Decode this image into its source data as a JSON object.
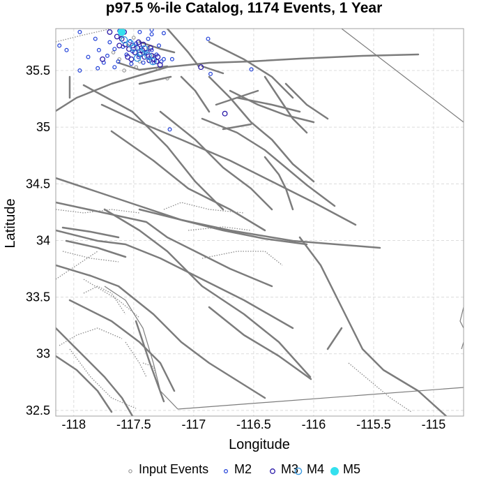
{
  "chart_data": {
    "type": "scatter",
    "title": "p97.5 %-ile Catalog, 1174 Events, 1 Year",
    "xlabel": "Longitude",
    "ylabel": "Latitude",
    "xlim": [
      -118.15,
      -114.75
    ],
    "ylim": [
      32.45,
      35.87
    ],
    "x_ticks": [
      -118,
      -117.5,
      -117,
      -116.5,
      -116,
      -115.5,
      -115
    ],
    "y_ticks": [
      32.5,
      33,
      33.5,
      34,
      34.5,
      35,
      35.5
    ],
    "x_tick_labels": [
      "-118",
      "-117.5",
      "-117",
      "-116.5",
      "-116",
      "-115.5",
      "-115"
    ],
    "y_tick_labels": [
      "32.5",
      "33",
      "33.5",
      "34",
      "34.5",
      "35",
      "35.5"
    ],
    "grid": true,
    "legend_position": "bottom",
    "series": [
      {
        "name": "Input Events",
        "color": "#888888",
        "points": [
          [
            -117.55,
            35.72
          ],
          [
            -117.5,
            35.79
          ],
          [
            -117.62,
            35.6
          ],
          [
            -117.42,
            35.66
          ],
          [
            -117.38,
            35.7
          ],
          [
            -117.45,
            35.58
          ],
          [
            -117.33,
            35.63
          ],
          [
            -117.6,
            35.8
          ],
          [
            -117.67,
            35.66
          ],
          [
            -117.22,
            35.43
          ],
          [
            -117.48,
            35.53
          ],
          [
            -117.3,
            35.52
          ],
          [
            -117.58,
            35.5
          ]
        ]
      },
      {
        "name": "M2",
        "color": "#1f3fd8",
        "points": [
          [
            -118.12,
            35.72
          ],
          [
            -118.06,
            35.68
          ],
          [
            -117.95,
            35.5
          ],
          [
            -117.88,
            35.62
          ],
          [
            -117.82,
            35.78
          ],
          [
            -117.79,
            35.68
          ],
          [
            -117.75,
            35.57
          ],
          [
            -117.72,
            35.63
          ],
          [
            -117.7,
            35.75
          ],
          [
            -117.66,
            35.69
          ],
          [
            -117.63,
            35.58
          ],
          [
            -117.59,
            35.71
          ],
          [
            -117.56,
            35.64
          ],
          [
            -117.53,
            35.76
          ],
          [
            -117.51,
            35.67
          ],
          [
            -117.48,
            35.74
          ],
          [
            -117.46,
            35.62
          ],
          [
            -117.44,
            35.7
          ],
          [
            -117.42,
            35.57
          ],
          [
            -117.4,
            35.66
          ],
          [
            -117.37,
            35.61
          ],
          [
            -117.35,
            35.68
          ],
          [
            -117.33,
            35.57
          ],
          [
            -117.31,
            35.64
          ],
          [
            -117.29,
            35.72
          ],
          [
            -117.27,
            35.58
          ],
          [
            -117.25,
            35.6
          ],
          [
            -117.35,
            35.82
          ],
          [
            -117.38,
            35.78
          ],
          [
            -117.45,
            35.84
          ],
          [
            -117.8,
            35.52
          ],
          [
            -117.66,
            35.53
          ],
          [
            -117.52,
            35.56
          ],
          [
            -117.18,
            35.6
          ],
          [
            -116.88,
            35.78
          ],
          [
            -116.86,
            35.47
          ],
          [
            -116.52,
            35.51
          ],
          [
            -117.2,
            34.98
          ],
          [
            -117.62,
            35.85
          ],
          [
            -117.95,
            35.84
          ],
          [
            -117.35,
            35.86
          ],
          [
            -117.25,
            35.83
          ]
        ]
      },
      {
        "name": "M3",
        "color": "#2a1aa8",
        "points": [
          [
            -117.6,
            35.78
          ],
          [
            -117.57,
            35.73
          ],
          [
            -117.54,
            35.69
          ],
          [
            -117.51,
            35.72
          ],
          [
            -117.49,
            35.66
          ],
          [
            -117.47,
            35.7
          ],
          [
            -117.45,
            35.64
          ],
          [
            -117.43,
            35.68
          ],
          [
            -117.41,
            35.62
          ],
          [
            -117.39,
            35.66
          ],
          [
            -117.37,
            35.59
          ],
          [
            -117.35,
            35.63
          ],
          [
            -117.33,
            35.6
          ],
          [
            -117.31,
            35.58
          ],
          [
            -117.55,
            35.62
          ],
          [
            -117.64,
            35.8
          ],
          [
            -117.58,
            35.84
          ],
          [
            -117.46,
            35.75
          ],
          [
            -117.52,
            35.6
          ],
          [
            -117.3,
            35.62
          ],
          [
            -117.42,
            35.73
          ],
          [
            -117.36,
            35.7
          ],
          [
            -117.62,
            35.72
          ],
          [
            -116.94,
            35.53
          ],
          [
            -116.74,
            35.12
          ],
          [
            -117.76,
            35.6
          ],
          [
            -117.7,
            35.84
          ],
          [
            -117.28,
            35.55
          ]
        ]
      },
      {
        "name": "M4",
        "color": "#3a9ae0",
        "points": [
          [
            -117.58,
            35.77
          ],
          [
            -117.5,
            35.7
          ],
          [
            -117.44,
            35.66
          ],
          [
            -117.38,
            35.63
          ],
          [
            -117.53,
            35.74
          ],
          [
            -117.47,
            35.61
          ],
          [
            -117.41,
            35.69
          ],
          [
            -117.34,
            35.58
          ]
        ]
      },
      {
        "name": "M5",
        "color": "#34e0ee",
        "points": [
          [
            -117.6,
            35.84
          ]
        ]
      }
    ]
  }
}
